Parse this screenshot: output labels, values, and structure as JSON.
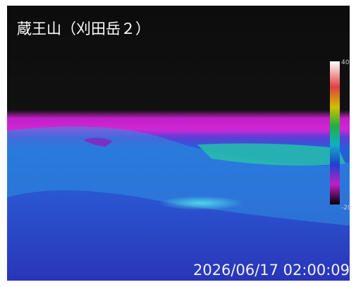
{
  "title": "蔵王山（刈田岳２）",
  "timestamp": "2026/06/17 02:00:09",
  "scale": {
    "max": 40,
    "min": -20
  }
}
